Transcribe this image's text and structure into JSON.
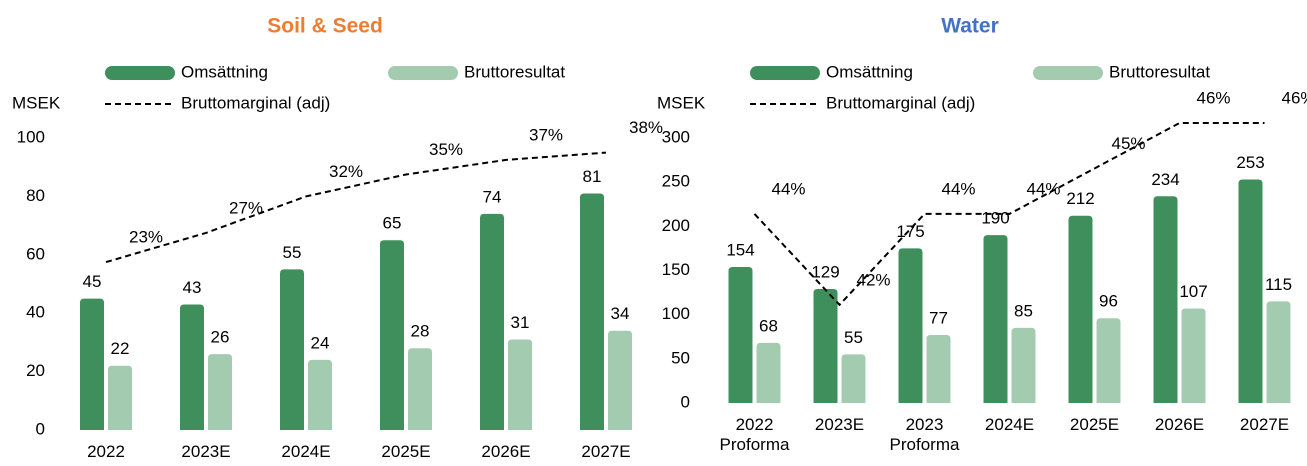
{
  "chart_data": [
    {
      "type": "bar",
      "title": "Soil & Seed",
      "title_color": "#ed7d31",
      "y_label": "MSEK",
      "categories": [
        "2022",
        "2023E",
        "2024E",
        "2025E",
        "2026E",
        "2027E"
      ],
      "series": [
        {
          "name": "Omsättning",
          "color": "#3f8f5c",
          "values": [
            45,
            43,
            55,
            65,
            74,
            81
          ]
        },
        {
          "name": "Bruttoresultat",
          "color": "#a3cbb0",
          "values": [
            22,
            26,
            24,
            28,
            31,
            34
          ]
        },
        {
          "name": "Bruttomarginal (adj)",
          "type": "line",
          "axis": "y2",
          "color": "#000000",
          "dashed": true,
          "values": [
            23,
            27,
            32,
            35,
            37,
            38
          ],
          "value_labels": [
            "23%",
            "27%",
            "32%",
            "35%",
            "37%",
            "38%"
          ]
        }
      ],
      "ylim": [
        0,
        100
      ],
      "yticks": [
        0,
        20,
        40,
        60,
        80,
        100
      ],
      "y2lim": [
        0,
        40
      ]
    },
    {
      "type": "bar",
      "title": "Water",
      "title_color": "#4472c4",
      "y_label": "MSEK",
      "categories": [
        "2022\nProforma",
        "2023E",
        "2023\nProforma",
        "2024E",
        "2025E",
        "2026E",
        "2027E"
      ],
      "series": [
        {
          "name": "Omsättning",
          "color": "#3f8f5c",
          "values": [
            154,
            129,
            175,
            190,
            212,
            234,
            253
          ]
        },
        {
          "name": "Bruttoresultat",
          "color": "#a3cbb0",
          "values": [
            68,
            55,
            77,
            85,
            96,
            107,
            115
          ]
        },
        {
          "name": "Bruttomarginal (adj)",
          "type": "line",
          "axis": "y2",
          "color": "#000000",
          "dashed": true,
          "values": [
            44,
            42,
            44,
            44,
            45,
            46,
            46
          ],
          "value_labels": [
            "44%",
            "42%",
            "44%",
            "44%",
            "45%",
            "46%",
            "46%"
          ]
        }
      ],
      "ylim": [
        0,
        300
      ],
      "yticks": [
        0,
        50,
        100,
        150,
        200,
        250,
        300
      ],
      "y2lim": [
        39.84,
        45.67
      ]
    }
  ]
}
